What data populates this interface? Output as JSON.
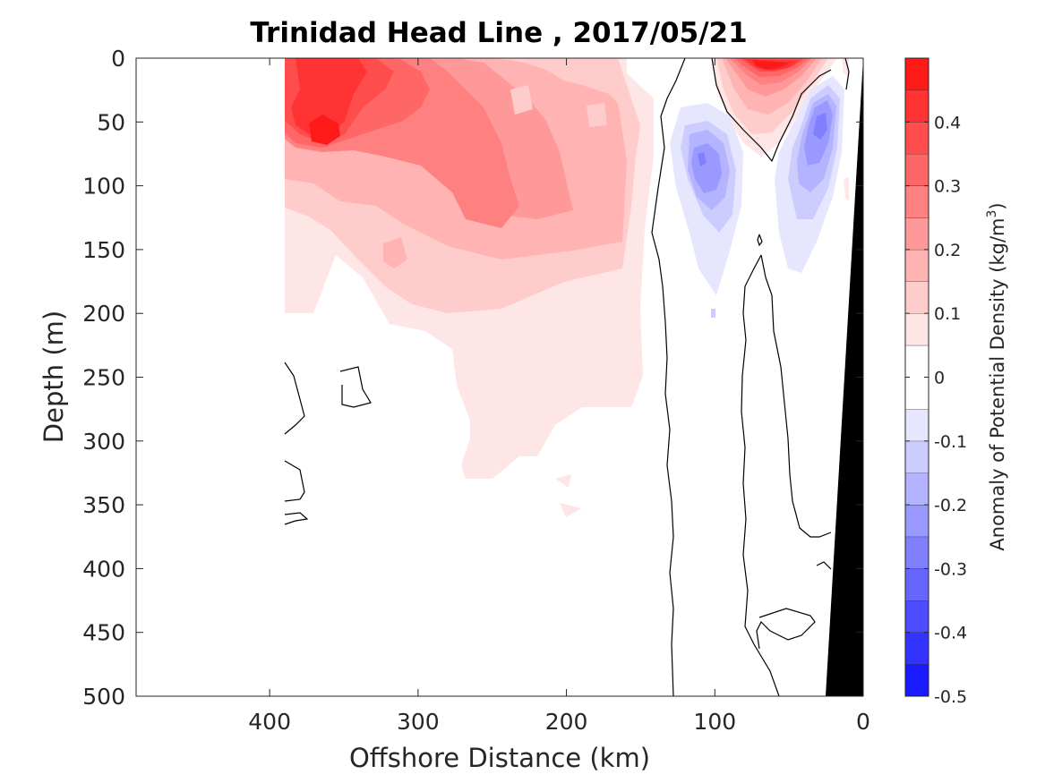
{
  "chart_data": {
    "type": "heatmap",
    "title": "Trinidad Head Line , 2017/05/21",
    "xlabel": "Offshore Distance (km)",
    "ylabel": "Depth (m)",
    "xlim": [
      490,
      0
    ],
    "ylim": [
      0,
      500
    ],
    "x_ticks": [
      400,
      300,
      200,
      100,
      0
    ],
    "y_ticks": [
      0,
      50,
      100,
      150,
      200,
      250,
      300,
      350,
      400,
      450,
      500
    ],
    "x_tick_labels": [
      "400",
      "300",
      "200",
      "100",
      "0"
    ],
    "y_tick_labels": [
      "0",
      "50",
      "100",
      "150",
      "200",
      "250",
      "300",
      "350",
      "400",
      "450",
      "500"
    ],
    "colorbar": {
      "label_main": "Anomaly of Potential Density (kg/m",
      "label_sup": "3",
      "label_close": ")",
      "range": [
        -0.5,
        0.5
      ],
      "ticks": [
        0.4,
        0.3,
        0.2,
        0.1,
        0,
        -0.1,
        -0.2,
        -0.3,
        -0.4,
        -0.5
      ],
      "tick_labels": [
        "0.4",
        "0.3",
        "0.2",
        "0.1",
        "0",
        "-0.1",
        "-0.2",
        "-0.3",
        "-0.4",
        "-0.5"
      ],
      "levels": [
        -0.5,
        -0.45,
        -0.4,
        -0.35,
        -0.3,
        -0.25,
        -0.2,
        -0.15,
        -0.1,
        -0.05,
        0.05,
        0.1,
        0.15,
        0.2,
        0.25,
        0.3,
        0.35,
        0.4,
        0.45,
        0.5
      ],
      "colors": [
        "#0000ff",
        "#1a1aff",
        "#3333ff",
        "#4d4dff",
        "#6666ff",
        "#8080ff",
        "#9999ff",
        "#b3b3ff",
        "#ccccff",
        "#e6e6ff",
        "#ffffff",
        "#ffe6e6",
        "#ffcccc",
        "#ffb3b3",
        "#ff9999",
        "#ff8080",
        "#ff6666",
        "#ff4d4d",
        "#ff3333",
        "#ff1a1a",
        "#ff0000"
      ]
    },
    "data_extent_km": [
      0,
      390
    ],
    "features": [
      {
        "name": "surface warm-anomaly core",
        "x": 360,
        "y": 60,
        "value": 0.4
      },
      {
        "name": "nearshore surface maximum",
        "x": 60,
        "y": 10,
        "value": 0.45
      },
      {
        "name": "offshore negative cell",
        "x": 110,
        "y": 85,
        "value": -0.2
      },
      {
        "name": "inshore negative cell",
        "x": 35,
        "y": 60,
        "value": -0.25
      },
      {
        "name": "mid-section positive tongue",
        "x": 230,
        "y": 110,
        "value": 0.25
      },
      {
        "name": "deep positive tail",
        "x": 230,
        "y": 280,
        "value": 0.05
      }
    ],
    "bathymetry": {
      "fill": "#000000",
      "shelf": [
        [
          0,
          0
        ],
        [
          0,
          500
        ],
        [
          29,
          500
        ]
      ]
    }
  }
}
